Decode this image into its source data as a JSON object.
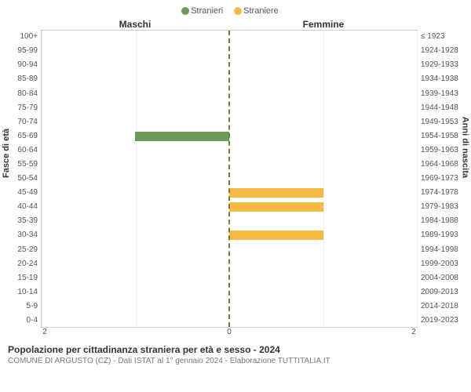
{
  "legend": {
    "items": [
      {
        "label": "Stranieri",
        "color": "#6b9a5b"
      },
      {
        "label": "Straniere",
        "color": "#f4b942"
      }
    ]
  },
  "headers": {
    "left": "Maschi",
    "right": "Femmine"
  },
  "axis_labels": {
    "left": "Fasce di età",
    "right": "Anni di nascita"
  },
  "chart": {
    "type": "population-pyramid",
    "xmax": 2,
    "xticks": [
      2,
      0,
      2
    ],
    "bar_colors": {
      "male": "#6b9a5b",
      "female": "#f4b942"
    },
    "background_color": "#ffffff",
    "grid_color": "#eeeeee",
    "center_line_color": "#7a7a3a",
    "rows": [
      {
        "age": "100+",
        "years": "≤ 1923",
        "male": 0,
        "female": 0
      },
      {
        "age": "95-99",
        "years": "1924-1928",
        "male": 0,
        "female": 0
      },
      {
        "age": "90-94",
        "years": "1929-1933",
        "male": 0,
        "female": 0
      },
      {
        "age": "85-89",
        "years": "1934-1938",
        "male": 0,
        "female": 0
      },
      {
        "age": "80-84",
        "years": "1939-1943",
        "male": 0,
        "female": 0
      },
      {
        "age": "75-79",
        "years": "1944-1948",
        "male": 0,
        "female": 0
      },
      {
        "age": "70-74",
        "years": "1949-1953",
        "male": 0,
        "female": 0
      },
      {
        "age": "65-69",
        "years": "1954-1958",
        "male": 1,
        "female": 0
      },
      {
        "age": "60-64",
        "years": "1959-1963",
        "male": 0,
        "female": 0
      },
      {
        "age": "55-59",
        "years": "1964-1968",
        "male": 0,
        "female": 0
      },
      {
        "age": "50-54",
        "years": "1969-1973",
        "male": 0,
        "female": 0
      },
      {
        "age": "45-49",
        "years": "1974-1978",
        "male": 0,
        "female": 1
      },
      {
        "age": "40-44",
        "years": "1979-1983",
        "male": 0,
        "female": 1
      },
      {
        "age": "35-39",
        "years": "1984-1988",
        "male": 0,
        "female": 0
      },
      {
        "age": "30-34",
        "years": "1989-1993",
        "male": 0,
        "female": 1
      },
      {
        "age": "25-29",
        "years": "1994-1998",
        "male": 0,
        "female": 0
      },
      {
        "age": "20-24",
        "years": "1999-2003",
        "male": 0,
        "female": 0
      },
      {
        "age": "15-19",
        "years": "2004-2008",
        "male": 0,
        "female": 0
      },
      {
        "age": "10-14",
        "years": "2009-2013",
        "male": 0,
        "female": 0
      },
      {
        "age": "5-9",
        "years": "2014-2018",
        "male": 0,
        "female": 0
      },
      {
        "age": "0-4",
        "years": "2019-2023",
        "male": 0,
        "female": 0
      }
    ]
  },
  "footer": {
    "title": "Popolazione per cittadinanza straniera per età e sesso - 2024",
    "subtitle": "COMUNE DI ARGUSTO (CZ) - Dati ISTAT al 1° gennaio 2024 - Elaborazione TUTTITALIA.IT"
  }
}
